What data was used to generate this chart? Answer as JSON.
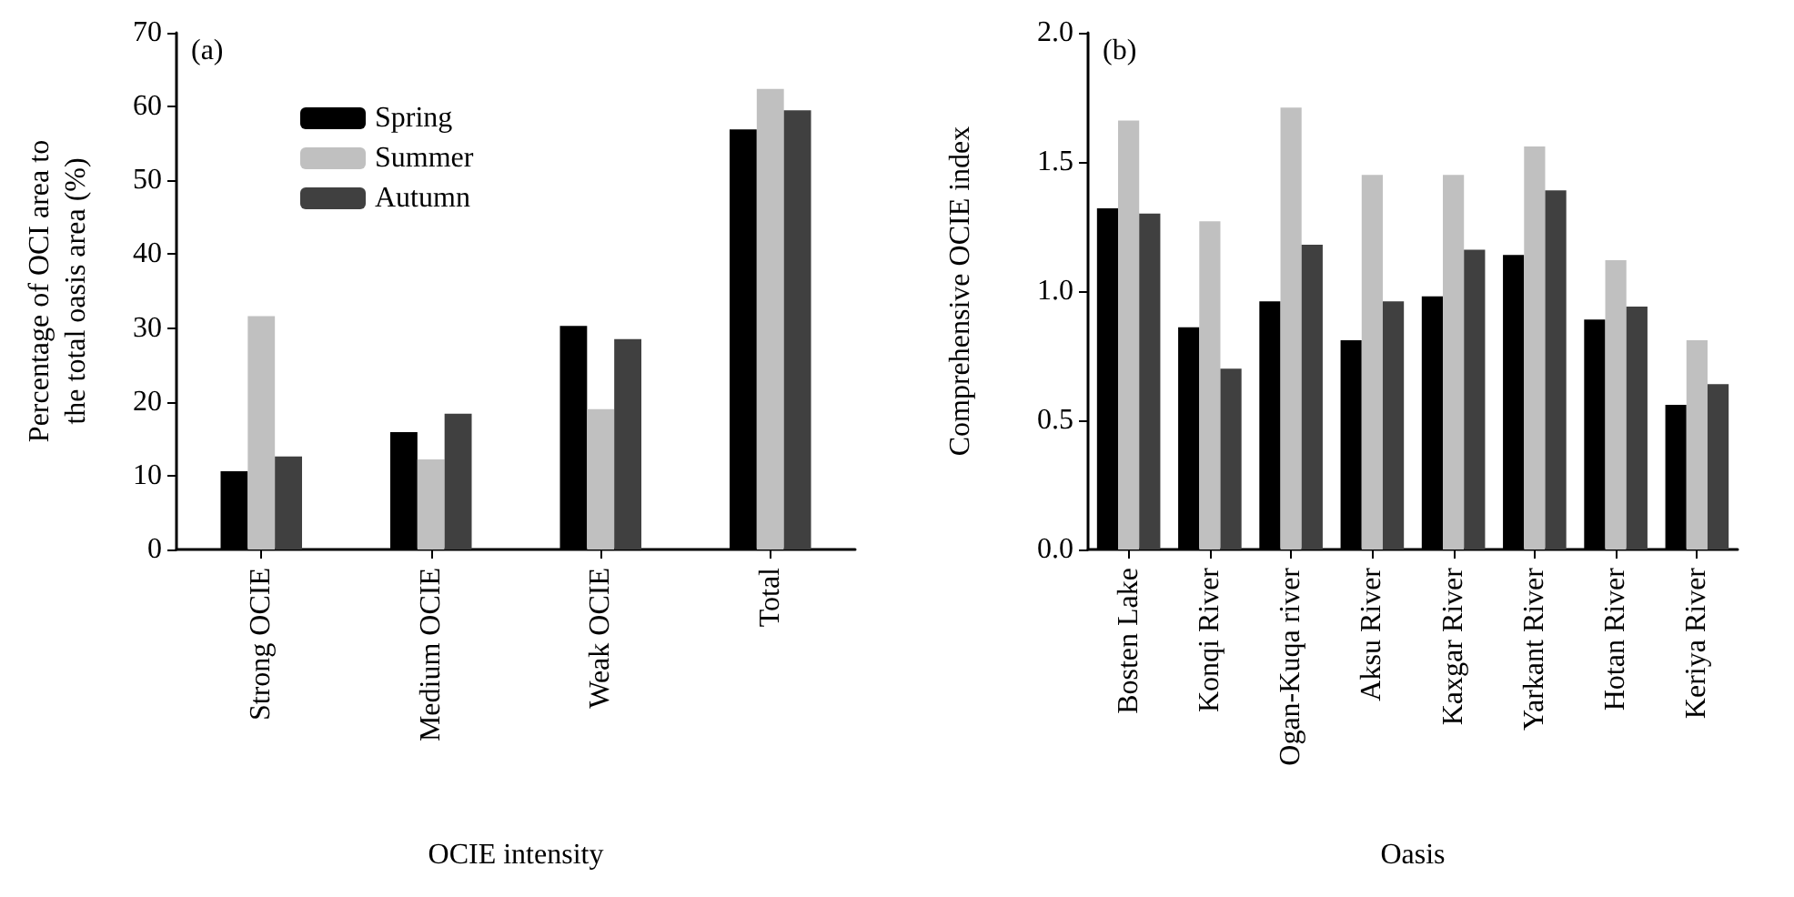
{
  "chart_data": [
    {
      "type": "bar",
      "categories": [
        "Strong OCIE",
        "Medium OCIE",
        "Weak OCIE",
        "Total"
      ],
      "xlabel": "OCIE intensity",
      "ylabel": "Percentage of OCI area to\nthe total oasis area (%)",
      "annotations": [
        "(a)"
      ],
      "ylim": [
        0,
        70
      ],
      "yticks": [
        0,
        10,
        20,
        30,
        40,
        50,
        60,
        70
      ],
      "grid": false,
      "legend": "top left",
      "series": [
        {
          "name": "Spring",
          "color": "#000000",
          "values": [
            10.6,
            15.9,
            30.3,
            56.9
          ]
        },
        {
          "name": "Summer",
          "color": "#c0c0c0",
          "values": [
            31.6,
            12.2,
            19.0,
            62.4
          ]
        },
        {
          "name": "Autumn",
          "color": "#404040",
          "values": [
            12.6,
            18.4,
            28.5,
            59.5
          ]
        }
      ]
    },
    {
      "type": "bar",
      "categories": [
        "Bosten Lake",
        "Konqi River",
        "Ogan-Kuqa river",
        "Aksu River",
        "Kaxgar River",
        "Yarkant River",
        "Hotan River",
        "Keriya River"
      ],
      "xlabel": "Oasis",
      "ylabel": "Comprehensive OCIE index",
      "annotations": [
        "(b)"
      ],
      "ylim": [
        0,
        2
      ],
      "yticks": [
        {
          "value": 0,
          "label": "0.0"
        },
        {
          "value": 0.5,
          "label": "0.5"
        },
        {
          "value": 1,
          "label": "1.0"
        },
        {
          "value": 1.5,
          "label": "1.5"
        },
        {
          "value": 2,
          "label": "2.0"
        }
      ],
      "grid": false,
      "series": [
        {
          "color": "#000000",
          "values": [
            1.32,
            0.86,
            0.96,
            0.81,
            0.98,
            1.14,
            0.89,
            0.56
          ]
        },
        {
          "color": "#c0c0c0",
          "values": [
            1.66,
            1.27,
            1.71,
            1.45,
            1.45,
            1.56,
            1.12,
            0.81
          ]
        },
        {
          "color": "#404040",
          "values": [
            1.3,
            0.7,
            1.18,
            0.96,
            1.16,
            1.39,
            0.94,
            0.64
          ]
        }
      ]
    }
  ]
}
